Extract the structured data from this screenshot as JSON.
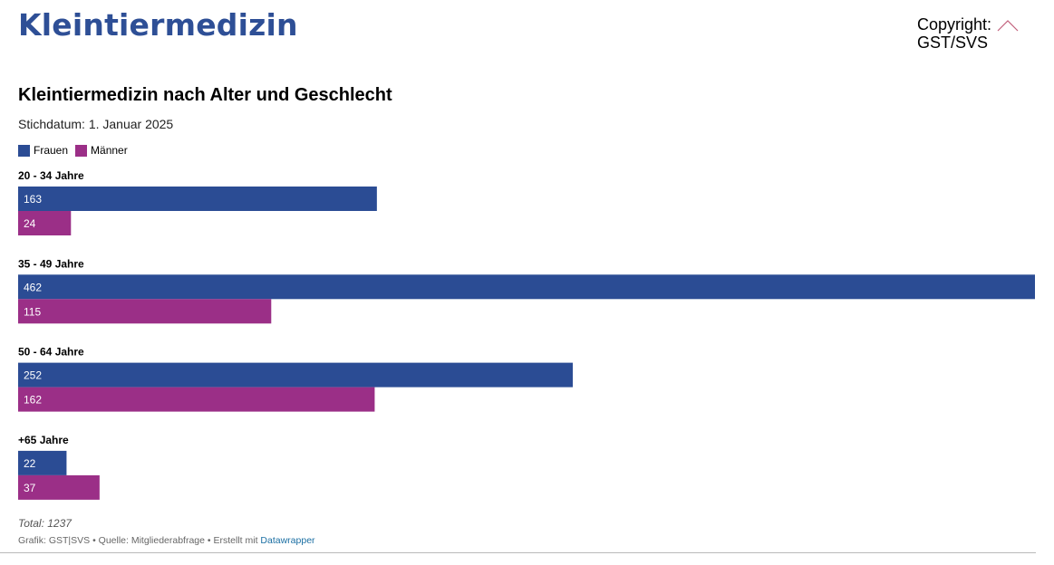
{
  "header": {
    "site_title": "Kleintiermedizin",
    "copyright_line1": "Copyright:",
    "copyright_line2": "GST/SVS",
    "scroll_icon": "chevron-up-icon"
  },
  "chart_data": {
    "type": "bar",
    "orientation": "horizontal",
    "title": "Kleintiermedizin nach Alter und Geschlecht",
    "subtitle": "Stichdatum: 1. Januar 2025",
    "categories": [
      "20 - 34 Jahre",
      "35 - 49 Jahre",
      "50 - 64 Jahre",
      "+65 Jahre"
    ],
    "series": [
      {
        "name": "Frauen",
        "color": "#2b4c94",
        "values": [
          163,
          462,
          252,
          22
        ]
      },
      {
        "name": "Männer",
        "color": "#9b2f87",
        "values": [
          24,
          115,
          162,
          37
        ]
      }
    ],
    "xlim": [
      0,
      462
    ],
    "legend_position": "top-left",
    "grid": false,
    "value_labels": true,
    "note": "Total: 1237"
  },
  "footer": {
    "credit_prefix": "Grafik: GST|SVS • Quelle: Mitgliederabfrage • Erstellt mit ",
    "credit_link": "Datawrapper"
  }
}
